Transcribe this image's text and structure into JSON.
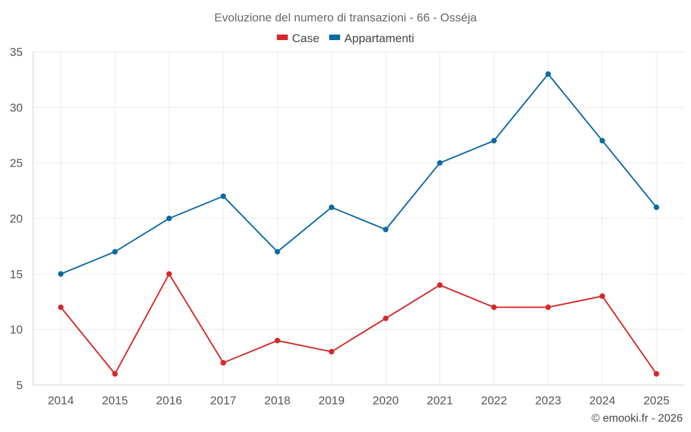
{
  "chart_data": {
    "type": "line",
    "title": "Evoluzione del numero di transazioni - 66 - Osséja",
    "categories": [
      "2014",
      "2015",
      "2016",
      "2017",
      "2018",
      "2019",
      "2020",
      "2021",
      "2022",
      "2023",
      "2024",
      "2025"
    ],
    "series": [
      {
        "name": "Case",
        "color": "#d62728",
        "values": [
          12,
          6,
          15,
          7,
          9,
          8,
          11,
          14,
          12,
          12,
          13,
          6
        ]
      },
      {
        "name": "Appartamenti",
        "color": "#0b6aa2",
        "values": [
          15,
          17,
          20,
          22,
          17,
          21,
          19,
          25,
          27,
          33,
          27,
          21
        ]
      }
    ],
    "ylim": [
      5,
      35
    ],
    "yticks": [
      5,
      10,
      15,
      20,
      25,
      30,
      35
    ],
    "xlabel": "",
    "ylabel": "",
    "grid": true,
    "legend": "top-center"
  },
  "credit": "© emooki.fr - 2026"
}
